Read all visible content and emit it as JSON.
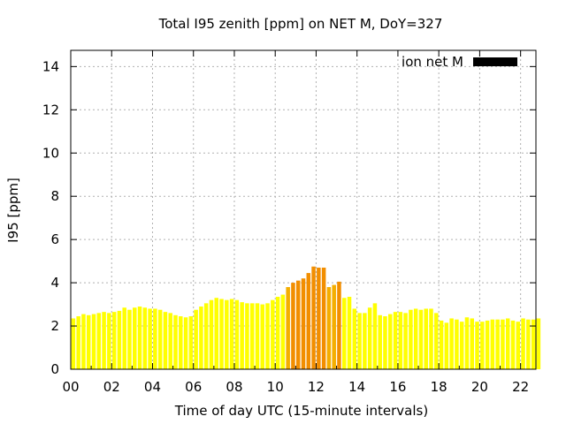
{
  "chart_data": {
    "type": "bar",
    "title": "Total I95 zenith [ppm] on NET M, DoY=327",
    "xlabel": "Time of day UTC (15-minute intervals)",
    "ylabel": "I95 [ppm]",
    "xlim": [
      0,
      22.75
    ],
    "ylim": [
      0,
      14.75
    ],
    "x_ticks": [
      "00",
      "02",
      "04",
      "06",
      "08",
      "10",
      "12",
      "14",
      "16",
      "18",
      "20",
      "22"
    ],
    "y_ticks": [
      "0",
      "2",
      "4",
      "6",
      "8",
      "10",
      "12",
      "14"
    ],
    "grid": true,
    "legend": {
      "label": "ion net M",
      "placement": "top-right",
      "color": "#000000"
    },
    "colors": {
      "low": "#ffff00",
      "mid": "#f4ae00",
      "high": "#f28e00",
      "grid": "#b0b0b0"
    },
    "bar_interval_hours": 0.25,
    "bar_start_hour": 0,
    "values": [
      2.35,
      2.45,
      2.55,
      2.5,
      2.55,
      2.6,
      2.65,
      2.6,
      2.65,
      2.7,
      2.85,
      2.75,
      2.85,
      2.9,
      2.85,
      2.8,
      2.8,
      2.75,
      2.65,
      2.6,
      2.5,
      2.45,
      2.4,
      2.45,
      2.75,
      2.9,
      3.05,
      3.2,
      3.3,
      3.25,
      3.2,
      3.25,
      3.2,
      3.1,
      3.05,
      3.05,
      3.05,
      3.0,
      3.05,
      3.2,
      3.35,
      3.45,
      3.8,
      4.0,
      4.1,
      4.2,
      4.45,
      4.75,
      4.7,
      4.7,
      3.8,
      3.9,
      4.05,
      3.3,
      3.35,
      2.8,
      2.6,
      2.6,
      2.85,
      3.05,
      2.5,
      2.45,
      2.55,
      2.65,
      2.65,
      2.6,
      2.75,
      2.8,
      2.75,
      2.8,
      2.8,
      2.6,
      2.25,
      2.15,
      2.35,
      2.3,
      2.2,
      2.4,
      2.35,
      2.2,
      2.2,
      2.25,
      2.3,
      2.3,
      2.3,
      2.35,
      2.25,
      2.2,
      2.35,
      2.3,
      2.3,
      2.35
    ]
  }
}
